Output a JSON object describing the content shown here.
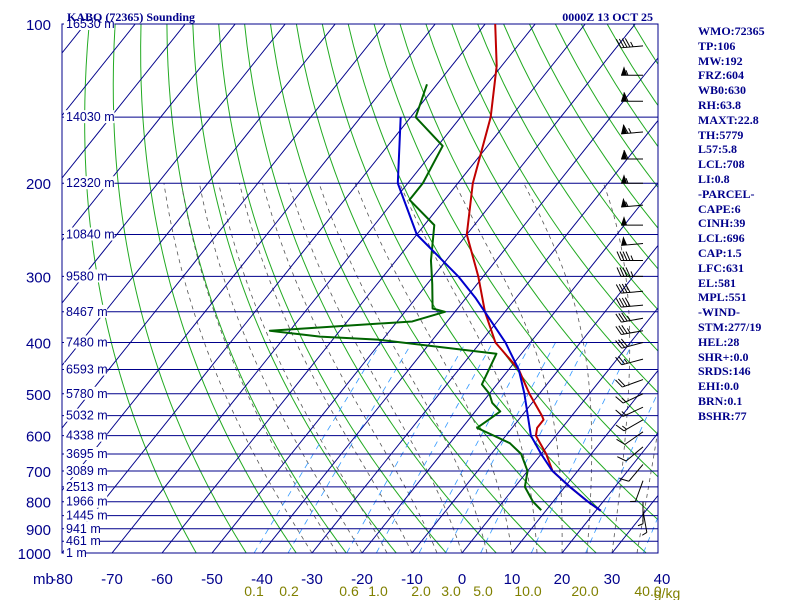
{
  "colors": {
    "background": "#ffffff",
    "grid": "#00008b",
    "dry_adiabat": "#22aa22",
    "moist_adiabat": "#555555",
    "mixing_ratio": "#3399ff",
    "temperature": "#c00000",
    "dewpoint": "#006400",
    "parcel": "#0000cd",
    "wind": "#000000",
    "text": "#00008b",
    "mixing_label": "#808000"
  },
  "chart_data": {
    "type": "line",
    "title": "KABQ (72365) Sounding",
    "valid_time": "0000Z 13 OCT 25",
    "pressure_unit": "mb",
    "mixing_unit": "g/kg",
    "pressure_levels": [
      100,
      200,
      300,
      400,
      500,
      600,
      700,
      800,
      900,
      1000
    ],
    "temperature_ticks": [
      -80,
      -70,
      -60,
      -50,
      -40,
      -30,
      -20,
      -10,
      0,
      10,
      20,
      30,
      40
    ],
    "height_labels": [
      {
        "p": 100,
        "label": "16530 m"
      },
      {
        "p": 150,
        "label": "14030 m"
      },
      {
        "p": 200,
        "label": "12320 m"
      },
      {
        "p": 250,
        "label": "10840 m"
      },
      {
        "p": 300,
        "label": "9580 m"
      },
      {
        "p": 350,
        "label": "8467 m"
      },
      {
        "p": 400,
        "label": "7480 m"
      },
      {
        "p": 450,
        "label": "6593 m"
      },
      {
        "p": 500,
        "label": "5780 m"
      },
      {
        "p": 550,
        "label": "5032 m"
      },
      {
        "p": 600,
        "label": "4338 m"
      },
      {
        "p": 650,
        "label": "3695 m"
      },
      {
        "p": 700,
        "label": "3089 m"
      },
      {
        "p": 750,
        "label": "2513 m"
      },
      {
        "p": 800,
        "label": "1966 m"
      },
      {
        "p": 850,
        "label": "1445 m"
      },
      {
        "p": 900,
        "label": "941 m"
      },
      {
        "p": 950,
        "label": "461 m"
      },
      {
        "p": 1000,
        "label": "1 m"
      }
    ],
    "mixing_ratio_labels": [
      "0.1",
      "0.2",
      "0.6",
      "1.0",
      "2.0",
      "3.0",
      "5.0",
      "10.0",
      "20.0",
      "40.0"
    ],
    "series": [
      {
        "name": "Temperature",
        "points": [
          [
            100,
            -78
          ],
          [
            120,
            -71
          ],
          [
            150,
            -64
          ],
          [
            200,
            -57
          ],
          [
            250,
            -50
          ],
          [
            300,
            -41
          ],
          [
            350,
            -34
          ],
          [
            400,
            -27
          ],
          [
            450,
            -18
          ],
          [
            500,
            -12
          ],
          [
            550,
            -6
          ],
          [
            560,
            -5
          ],
          [
            580,
            -5
          ],
          [
            600,
            -4
          ],
          [
            650,
            1
          ],
          [
            700,
            5
          ],
          [
            750,
            11
          ],
          [
            800,
            17
          ],
          [
            832,
            21
          ]
        ]
      },
      {
        "name": "Dewpoint",
        "points": [
          [
            130,
            -82
          ],
          [
            150,
            -79
          ],
          [
            170,
            -69
          ],
          [
            200,
            -67
          ],
          [
            215,
            -67
          ],
          [
            240,
            -58
          ],
          [
            280,
            -53
          ],
          [
            310,
            -49
          ],
          [
            345,
            -45
          ],
          [
            350,
            -42
          ],
          [
            365,
            -47
          ],
          [
            380,
            -74
          ],
          [
            390,
            -63
          ],
          [
            395,
            -51
          ],
          [
            420,
            -25
          ],
          [
            480,
            -23
          ],
          [
            500,
            -20
          ],
          [
            520,
            -18
          ],
          [
            540,
            -15
          ],
          [
            560,
            -16
          ],
          [
            580,
            -17
          ],
          [
            620,
            -8
          ],
          [
            650,
            -4
          ],
          [
            700,
            0
          ],
          [
            750,
            2
          ],
          [
            800,
            6
          ],
          [
            830,
            9
          ]
        ]
      },
      {
        "name": "Parcel",
        "points": [
          [
            150,
            -82
          ],
          [
            200,
            -72
          ],
          [
            250,
            -60
          ],
          [
            300,
            -45
          ],
          [
            330,
            -38
          ],
          [
            400,
            -25
          ],
          [
            450,
            -18
          ],
          [
            500,
            -13
          ],
          [
            600,
            -5
          ],
          [
            650,
            0
          ],
          [
            690,
            4
          ],
          [
            700,
            5
          ],
          [
            750,
            11
          ],
          [
            800,
            17
          ],
          [
            832,
            21
          ]
        ]
      }
    ],
    "wind_barbs": [
      {
        "p": 110,
        "dir": 265,
        "spd": 45
      },
      {
        "p": 125,
        "dir": 270,
        "spd": 55
      },
      {
        "p": 140,
        "dir": 270,
        "spd": 60
      },
      {
        "p": 160,
        "dir": 265,
        "spd": 65
      },
      {
        "p": 180,
        "dir": 270,
        "spd": 60
      },
      {
        "p": 200,
        "dir": 270,
        "spd": 55
      },
      {
        "p": 220,
        "dir": 265,
        "spd": 55
      },
      {
        "p": 240,
        "dir": 270,
        "spd": 50
      },
      {
        "p": 260,
        "dir": 265,
        "spd": 50
      },
      {
        "p": 280,
        "dir": 270,
        "spd": 45
      },
      {
        "p": 300,
        "dir": 270,
        "spd": 45
      },
      {
        "p": 320,
        "dir": 265,
        "spd": 40
      },
      {
        "p": 340,
        "dir": 265,
        "spd": 40
      },
      {
        "p": 360,
        "dir": 260,
        "spd": 35
      },
      {
        "p": 380,
        "dir": 260,
        "spd": 35
      },
      {
        "p": 400,
        "dir": 255,
        "spd": 30
      },
      {
        "p": 430,
        "dir": 255,
        "spd": 25
      },
      {
        "p": 470,
        "dir": 250,
        "spd": 20
      },
      {
        "p": 500,
        "dir": 245,
        "spd": 15
      },
      {
        "p": 530,
        "dir": 245,
        "spd": 15
      },
      {
        "p": 560,
        "dir": 240,
        "spd": 15
      },
      {
        "p": 590,
        "dir": 235,
        "spd": 10
      },
      {
        "p": 630,
        "dir": 230,
        "spd": 10
      },
      {
        "p": 680,
        "dir": 220,
        "spd": 10
      },
      {
        "p": 730,
        "dir": 200,
        "spd": 5
      },
      {
        "p": 800,
        "dir": 180,
        "spd": 5
      },
      {
        "p": 832,
        "dir": 170,
        "spd": 5
      }
    ]
  },
  "stats": [
    "WMO:72365",
    "TP:106",
    "MW:192",
    "FRZ:604",
    "WB0:630",
    "RH:63.8",
    "MAXT:22.8",
    "TH:5779",
    "L57:5.8",
    "LCL:708",
    "LI:0.8",
    "-PARCEL-",
    "CAPE:6",
    "CINH:39",
    "LCL:696",
    "CAP:1.5",
    "LFC:631",
    "EL:581",
    "MPL:551",
    "-WIND-",
    "STM:277/19",
    "HEL:28",
    "SHR+:0.0",
    "SRDS:146",
    "EHI:0.0",
    "BRN:0.1",
    "BSHR:77"
  ]
}
